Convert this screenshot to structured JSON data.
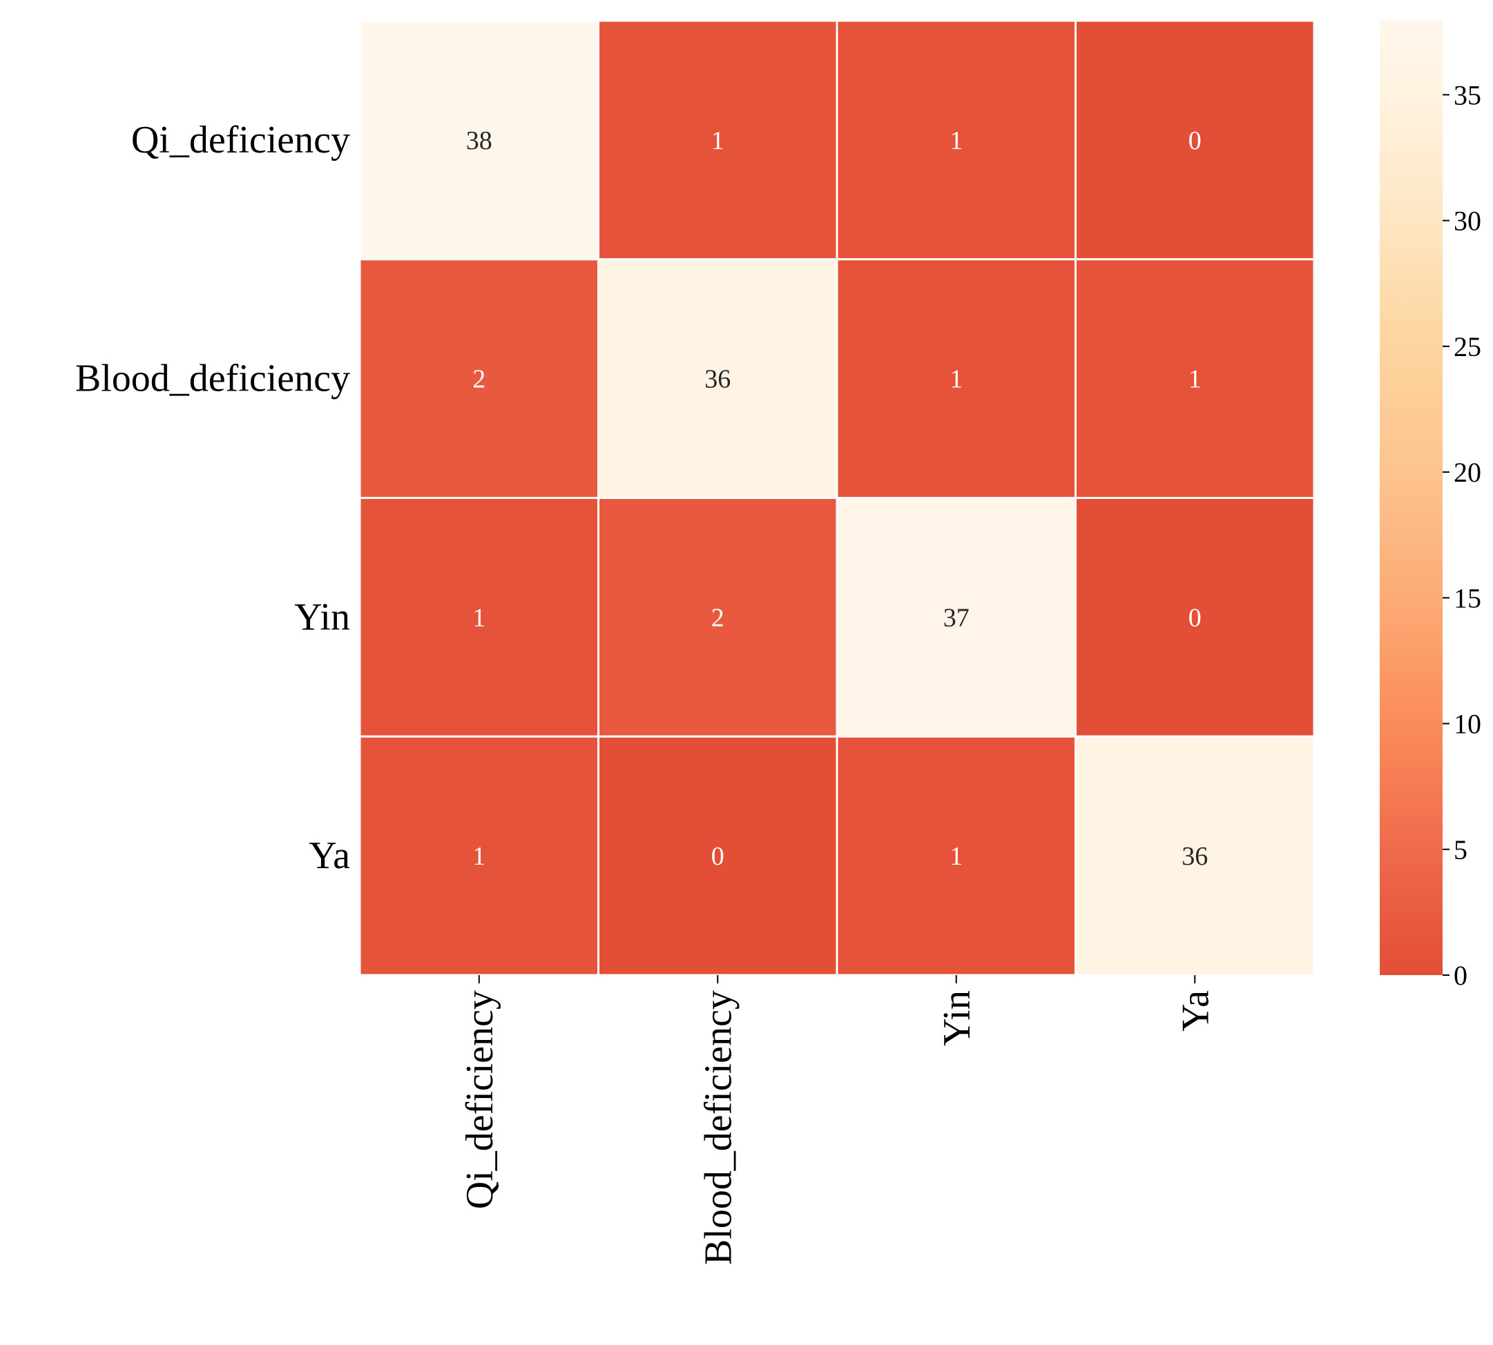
{
  "chart_data": {
    "type": "heatmap",
    "title": "",
    "xlabel": "",
    "ylabel": "",
    "x_categories": [
      "Qi_deficiency",
      "Blood_deficiency",
      "Yin",
      "Ya"
    ],
    "y_categories": [
      "Qi_deficiency",
      "Blood_deficiency",
      "Yin",
      "Ya"
    ],
    "values": [
      [
        38,
        1,
        1,
        0
      ],
      [
        2,
        36,
        1,
        1
      ],
      [
        1,
        2,
        37,
        0
      ],
      [
        1,
        0,
        1,
        36
      ]
    ],
    "colorbar": {
      "range": [
        0,
        38
      ],
      "ticks": [
        "0",
        "5",
        "10",
        "15",
        "20",
        "25",
        "30",
        "35"
      ],
      "colormap": "reversed orange-red (OrRd_r)",
      "low_color": "#e34e36",
      "high_color": "#fff7ec"
    },
    "annotation_colors": {
      "dark_cells": "#ffffff",
      "light_cells": "#262626"
    },
    "grid_line_color": "#ffffff"
  }
}
